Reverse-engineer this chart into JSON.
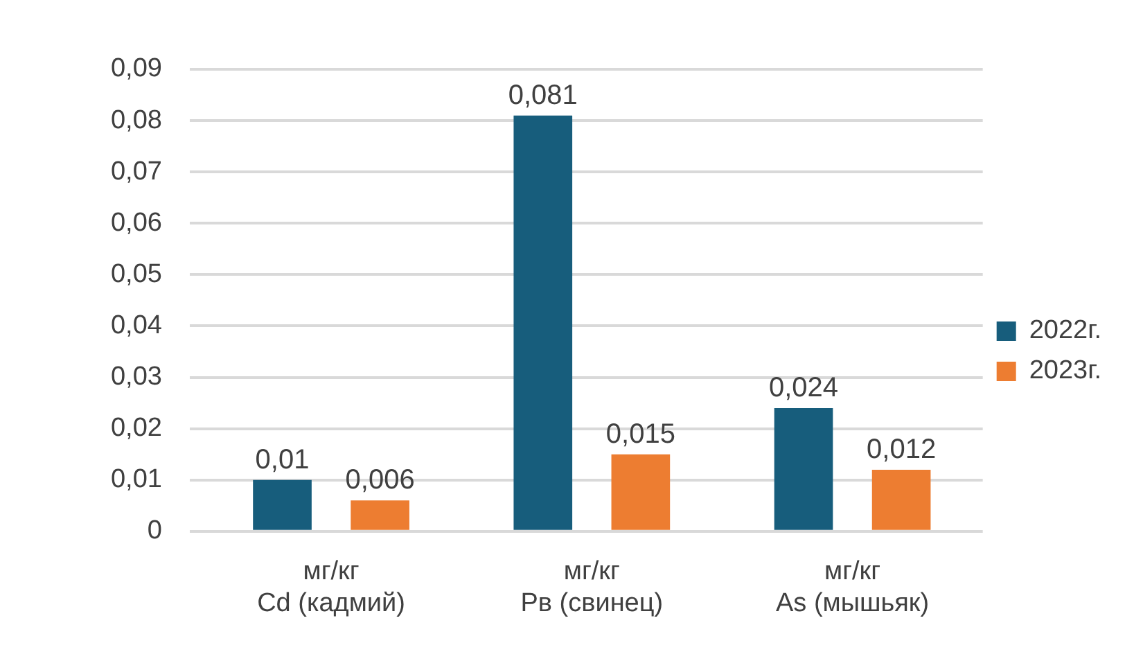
{
  "chart_data": {
    "type": "bar",
    "categories": [
      "мг/кг\nCd (кадмий)",
      "мг/кг\nPв (свинец)",
      "мг/кг\nAs (мышьяк)"
    ],
    "series": [
      {
        "name": "2022г.",
        "color": "#175d7c",
        "values": [
          0.01,
          0.081,
          0.024
        ],
        "value_labels": [
          "0,01",
          "0,081",
          "0,024"
        ]
      },
      {
        "name": "2023г.",
        "color": "#ed7d31",
        "values": [
          0.006,
          0.015,
          0.012
        ],
        "value_labels": [
          "0,006",
          "0,015",
          "0,012"
        ]
      }
    ],
    "ylim": [
      0,
      0.09
    ],
    "yticks": [
      {
        "value": 0,
        "label": "0"
      },
      {
        "value": 0.01,
        "label": "0,01"
      },
      {
        "value": 0.02,
        "label": "0,02"
      },
      {
        "value": 0.03,
        "label": "0,03"
      },
      {
        "value": 0.04,
        "label": "0,04"
      },
      {
        "value": 0.05,
        "label": "0,05"
      },
      {
        "value": 0.06,
        "label": "0,06"
      },
      {
        "value": 0.07,
        "label": "0,07"
      },
      {
        "value": 0.08,
        "label": "0,08"
      },
      {
        "value": 0.09,
        "label": "0,09"
      }
    ],
    "grid": "y",
    "legend": "right"
  }
}
